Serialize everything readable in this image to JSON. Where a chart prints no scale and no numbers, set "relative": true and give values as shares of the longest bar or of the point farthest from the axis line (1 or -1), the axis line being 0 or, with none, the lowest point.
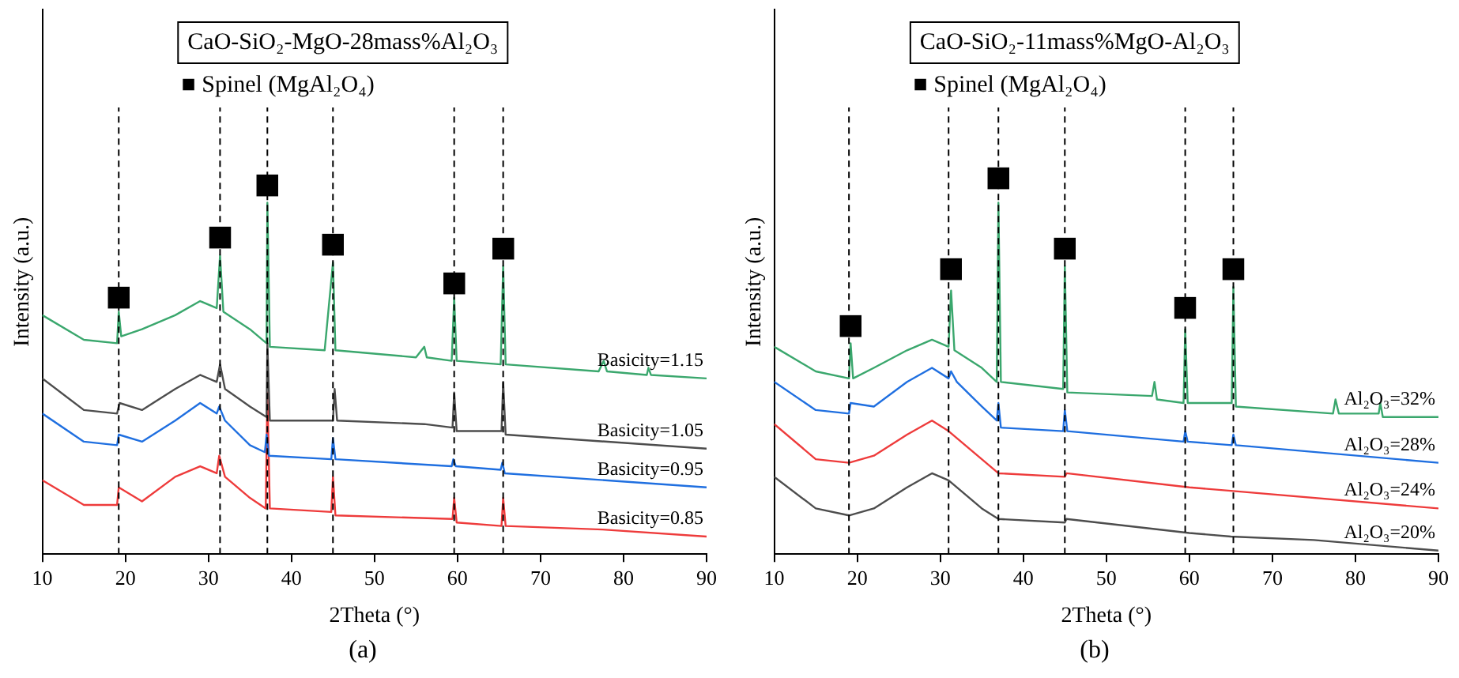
{
  "chart_data": [
    {
      "type": "line",
      "title": "CaO-SiO₂-MgO-28mass%Al₂O₃",
      "xlabel": "2Theta (°)",
      "ylabel": "Intensity (a.u.)",
      "relative": true,
      "xlim": [
        10,
        90
      ],
      "xticks": [
        10,
        20,
        30,
        40,
        50,
        60,
        70,
        80,
        90
      ],
      "series": [
        {
          "name": "Basicity=1.15",
          "color": "#3aa76d",
          "x": [
            10,
            15,
            19,
            19.2,
            19.5,
            22,
            26,
            29,
            31,
            31.4,
            31.8,
            35,
            37,
            37.1,
            37.4,
            44,
            45,
            45.3,
            55,
            56,
            56.3,
            59.3,
            59.6,
            59.9,
            65.2,
            65.5,
            65.8,
            77,
            77.6,
            78,
            82.8,
            83,
            83.3,
            90
          ],
          "values": [
            0.68,
            0.61,
            0.6,
            0.69,
            0.62,
            0.64,
            0.68,
            0.72,
            0.7,
            0.85,
            0.69,
            0.64,
            0.6,
            1.0,
            0.59,
            0.58,
            0.83,
            0.58,
            0.56,
            0.59,
            0.56,
            0.55,
            0.73,
            0.55,
            0.54,
            0.82,
            0.54,
            0.52,
            0.55,
            0.52,
            0.51,
            0.53,
            0.51,
            0.5
          ]
        },
        {
          "name": "Basicity=1.05",
          "color": "#4d4d4d",
          "x": [
            10,
            15,
            19,
            19.3,
            22,
            26,
            29,
            31,
            31.4,
            32,
            35,
            37,
            37.1,
            37.4,
            45,
            45.2,
            45.5,
            56,
            59.4,
            59.6,
            59.9,
            65.3,
            65.5,
            65.8,
            90
          ],
          "values": [
            0.5,
            0.41,
            0.4,
            0.43,
            0.41,
            0.47,
            0.51,
            0.49,
            0.54,
            0.47,
            0.42,
            0.39,
            0.6,
            0.38,
            0.38,
            0.47,
            0.38,
            0.37,
            0.36,
            0.46,
            0.35,
            0.35,
            0.49,
            0.34,
            0.3
          ]
        },
        {
          "name": "Basicity=0.95",
          "color": "#1f6fe0",
          "x": [
            10,
            15,
            19,
            19.2,
            22,
            26,
            29,
            31,
            31.3,
            32,
            35,
            36.8,
            37,
            37.3,
            44.8,
            45,
            45.3,
            59.3,
            59.5,
            59.8,
            65.2,
            65.4,
            65.7,
            90
          ],
          "values": [
            0.4,
            0.32,
            0.31,
            0.34,
            0.32,
            0.38,
            0.43,
            0.4,
            0.42,
            0.38,
            0.31,
            0.29,
            0.34,
            0.28,
            0.27,
            0.33,
            0.27,
            0.25,
            0.27,
            0.25,
            0.24,
            0.26,
            0.23,
            0.19
          ]
        },
        {
          "name": "Basicity=0.85",
          "color": "#ee3b3b",
          "x": [
            10,
            15,
            19,
            19.2,
            22,
            26,
            29,
            31,
            31.3,
            32,
            35,
            36.9,
            37.1,
            37.4,
            44.8,
            45,
            45.3,
            59.4,
            59.6,
            59.9,
            65.3,
            65.5,
            65.8,
            77.5,
            90
          ],
          "values": [
            0.21,
            0.14,
            0.14,
            0.19,
            0.15,
            0.22,
            0.25,
            0.23,
            0.28,
            0.22,
            0.16,
            0.13,
            0.46,
            0.13,
            0.12,
            0.22,
            0.11,
            0.1,
            0.16,
            0.09,
            0.08,
            0.16,
            0.08,
            0.07,
            0.05
          ]
        }
      ],
      "ref_lines": [
        {
          "axis": "x",
          "value": 19.2,
          "line_style": "dashed",
          "color": "#000000"
        },
        {
          "axis": "x",
          "value": 31.4,
          "line_style": "dashed",
          "color": "#000000"
        },
        {
          "axis": "x",
          "value": 37.1,
          "line_style": "dashed",
          "color": "#000000"
        },
        {
          "axis": "x",
          "value": 45,
          "line_style": "dashed",
          "color": "#000000"
        },
        {
          "axis": "x",
          "value": 59.6,
          "line_style": "dashed",
          "color": "#000000"
        },
        {
          "axis": "x",
          "value": 65.5,
          "line_style": "dashed",
          "color": "#000000"
        }
      ],
      "annotations": [
        "■ Spinel (MgAl₂O₄)",
        "(a)",
        {
          "text": "■",
          "x": 19.2,
          "y": 0.73
        },
        {
          "text": "■",
          "x": 31.4,
          "y": 0.9
        },
        {
          "text": "■",
          "x": 37.1,
          "y": 1.05
        },
        {
          "text": "■",
          "x": 45,
          "y": 0.88
        },
        {
          "text": "■",
          "x": 59.6,
          "y": 0.77
        },
        {
          "text": "■",
          "x": 65.5,
          "y": 0.87
        }
      ]
    },
    {
      "type": "line",
      "title": "CaO-SiO₂-11mass%MgO-Al₂O₃",
      "xlabel": "2Theta (°)",
      "ylabel": "Intensity (a.u.)",
      "relative": true,
      "xlim": [
        10,
        90
      ],
      "xticks": [
        10,
        20,
        30,
        40,
        50,
        60,
        70,
        80,
        90
      ],
      "series": [
        {
          "name": "Al₂O₃=32%",
          "color": "#3aa76d",
          "x": [
            10,
            15,
            19,
            19.2,
            19.5,
            22,
            26,
            29,
            31,
            31.3,
            31.7,
            35,
            36.8,
            37,
            37.3,
            44.8,
            45,
            45.3,
            55.5,
            55.8,
            56.1,
            59.3,
            59.5,
            59.8,
            65.1,
            65.3,
            65.6,
            77.3,
            77.6,
            78,
            82.8,
            83,
            83.3,
            90
          ],
          "values": [
            0.59,
            0.52,
            0.5,
            0.6,
            0.5,
            0.53,
            0.58,
            0.61,
            0.59,
            0.75,
            0.58,
            0.53,
            0.49,
            1.0,
            0.49,
            0.47,
            0.82,
            0.46,
            0.45,
            0.49,
            0.44,
            0.43,
            0.64,
            0.43,
            0.43,
            0.76,
            0.42,
            0.4,
            0.44,
            0.4,
            0.4,
            0.43,
            0.39,
            0.39
          ]
        },
        {
          "name": "Al₂O₃=28%",
          "color": "#1f6fe0",
          "x": [
            10,
            15,
            19,
            19.2,
            22,
            26,
            29,
            31,
            31.3,
            32,
            35,
            36.8,
            37,
            37.3,
            44.8,
            45,
            45.3,
            59.3,
            59.5,
            59.8,
            65.1,
            65.3,
            65.6,
            90
          ],
          "values": [
            0.49,
            0.41,
            0.4,
            0.43,
            0.42,
            0.49,
            0.53,
            0.5,
            0.52,
            0.49,
            0.42,
            0.38,
            0.43,
            0.36,
            0.35,
            0.41,
            0.35,
            0.32,
            0.35,
            0.32,
            0.31,
            0.34,
            0.31,
            0.26
          ]
        },
        {
          "name": "Al₂O₃=24%",
          "color": "#ee3b3b",
          "x": [
            10,
            15,
            19,
            22,
            26,
            29,
            31,
            35,
            37,
            45,
            45.2,
            60,
            65,
            90
          ],
          "values": [
            0.37,
            0.27,
            0.26,
            0.28,
            0.34,
            0.38,
            0.35,
            0.27,
            0.23,
            0.22,
            0.23,
            0.19,
            0.18,
            0.13
          ]
        },
        {
          "name": "Al₂O₃=20%",
          "color": "#4d4d4d",
          "x": [
            10,
            15,
            19,
            22,
            26,
            29,
            31,
            35,
            37,
            45,
            45.2,
            60,
            65,
            75,
            90
          ],
          "values": [
            0.22,
            0.13,
            0.11,
            0.13,
            0.19,
            0.23,
            0.21,
            0.13,
            0.1,
            0.09,
            0.1,
            0.06,
            0.05,
            0.04,
            0.01
          ]
        }
      ],
      "ref_lines": [
        {
          "axis": "x",
          "value": 19,
          "line_style": "dashed",
          "color": "#000000"
        },
        {
          "axis": "x",
          "value": 31,
          "line_style": "dashed",
          "color": "#000000"
        },
        {
          "axis": "x",
          "value": 37,
          "line_style": "dashed",
          "color": "#000000"
        },
        {
          "axis": "x",
          "value": 45,
          "line_style": "dashed",
          "color": "#000000"
        },
        {
          "axis": "x",
          "value": 59.5,
          "line_style": "dashed",
          "color": "#000000"
        },
        {
          "axis": "x",
          "value": 65.3,
          "line_style": "dashed",
          "color": "#000000"
        }
      ],
      "annotations": [
        "■ Spinel (MgAl₂O₄)",
        "(b)",
        {
          "text": "■",
          "x": 19.2,
          "y": 0.65
        },
        {
          "text": "■",
          "x": 31.3,
          "y": 0.81
        },
        {
          "text": "■",
          "x": 37,
          "y": 1.07
        },
        {
          "text": "■",
          "x": 45,
          "y": 0.87
        },
        {
          "text": "■",
          "x": 59.5,
          "y": 0.7
        },
        {
          "text": "■",
          "x": 65.3,
          "y": 0.81
        }
      ]
    }
  ]
}
